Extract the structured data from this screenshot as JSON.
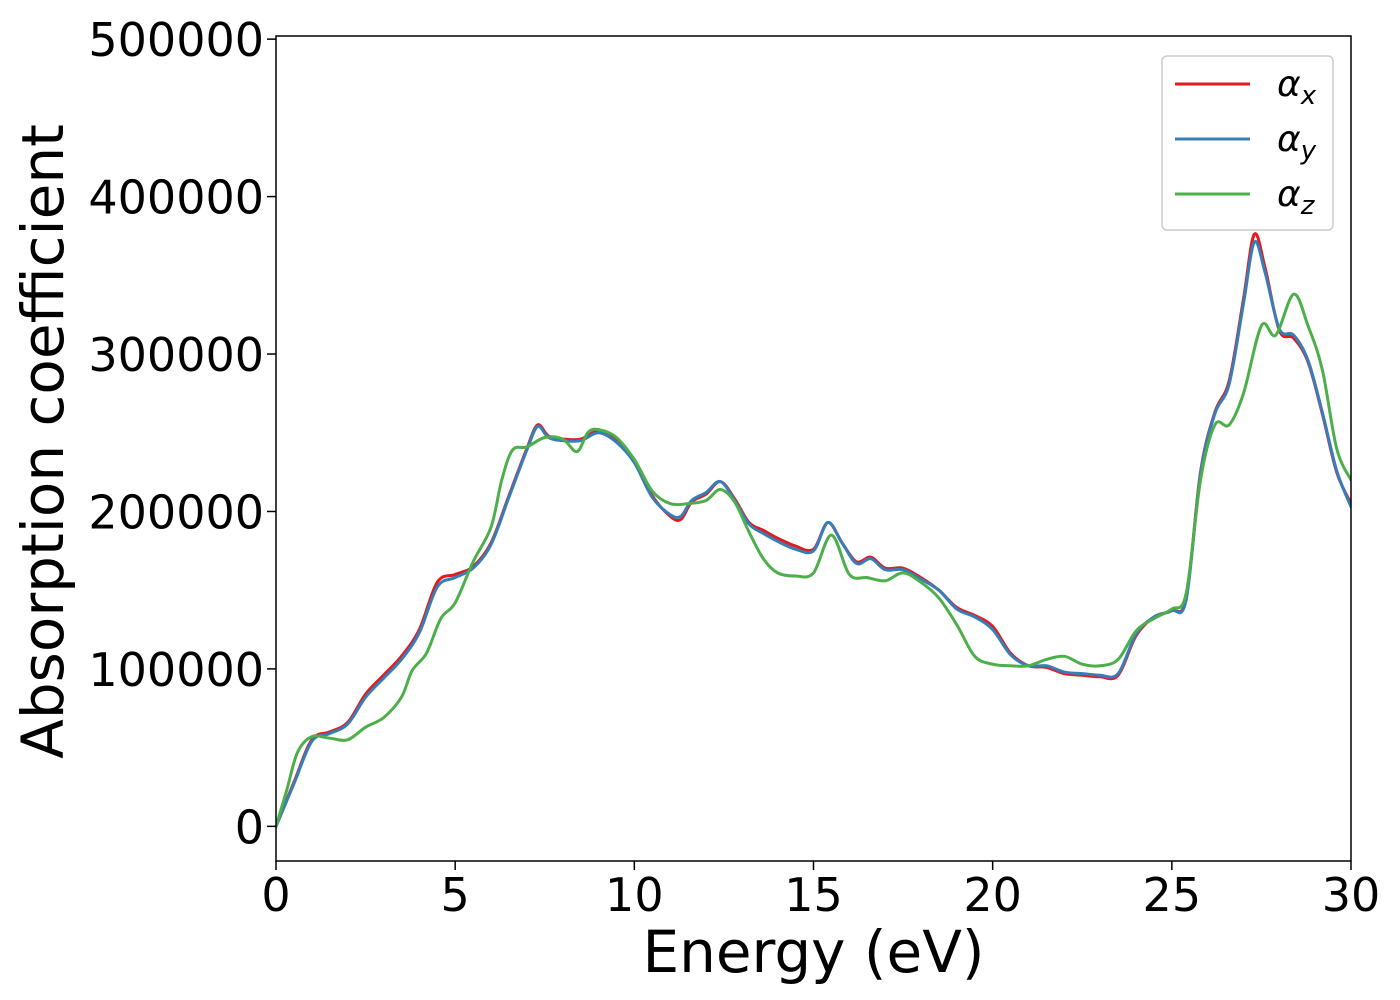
{
  "chart_data": {
    "type": "line",
    "title": "",
    "xlabel": "Energy (eV)",
    "ylabel": "Absorption coefficient",
    "xlim": [
      0,
      30
    ],
    "ylim": [
      -22000,
      502000
    ],
    "xticks": [
      0,
      5,
      10,
      15,
      20,
      25,
      30
    ],
    "xtick_labels": [
      "0",
      "5",
      "10",
      "15",
      "20",
      "25",
      "30"
    ],
    "yticks": [
      0,
      100000,
      200000,
      300000,
      400000,
      500000
    ],
    "ytick_labels": [
      "0",
      "100000",
      "200000",
      "300000",
      "400000",
      "500000"
    ],
    "grid": false,
    "legend_position": "top-right",
    "series": [
      {
        "name": "α_x",
        "legend_main": "α",
        "legend_sub": "x",
        "color": "#e41a1c",
        "points": [
          [
            0,
            0
          ],
          [
            0.5,
            28000
          ],
          [
            1,
            55000
          ],
          [
            1.5,
            60000
          ],
          [
            2,
            66000
          ],
          [
            2.5,
            84000
          ],
          [
            3,
            96000
          ],
          [
            3.5,
            108000
          ],
          [
            4,
            125000
          ],
          [
            4.5,
            155000
          ],
          [
            5,
            160000
          ],
          [
            5.5,
            165000
          ],
          [
            6,
            180000
          ],
          [
            6.5,
            210000
          ],
          [
            7,
            240000
          ],
          [
            7.3,
            255000
          ],
          [
            7.6,
            248000
          ],
          [
            8,
            246000
          ],
          [
            8.5,
            246000
          ],
          [
            9,
            251000
          ],
          [
            9.5,
            245000
          ],
          [
            10,
            232000
          ],
          [
            10.5,
            210000
          ],
          [
            11,
            197000
          ],
          [
            11.3,
            195000
          ],
          [
            11.6,
            206000
          ],
          [
            12,
            211000
          ],
          [
            12.4,
            219000
          ],
          [
            12.8,
            208000
          ],
          [
            13.2,
            193000
          ],
          [
            13.6,
            188000
          ],
          [
            14,
            183000
          ],
          [
            14.5,
            178000
          ],
          [
            15,
            176000
          ],
          [
            15.4,
            193000
          ],
          [
            15.8,
            180000
          ],
          [
            16.2,
            168000
          ],
          [
            16.6,
            171000
          ],
          [
            17,
            164000
          ],
          [
            17.5,
            164000
          ],
          [
            18,
            158000
          ],
          [
            18.5,
            150000
          ],
          [
            19,
            139000
          ],
          [
            19.5,
            134000
          ],
          [
            20,
            127000
          ],
          [
            20.5,
            110000
          ],
          [
            21,
            102000
          ],
          [
            21.5,
            101000
          ],
          [
            22,
            97000
          ],
          [
            22.5,
            96000
          ],
          [
            23,
            95000
          ],
          [
            23.5,
            96000
          ],
          [
            24,
            121000
          ],
          [
            24.5,
            133000
          ],
          [
            25,
            137000
          ],
          [
            25.4,
            145000
          ],
          [
            25.8,
            225000
          ],
          [
            26.2,
            263000
          ],
          [
            26.6,
            283000
          ],
          [
            27,
            335000
          ],
          [
            27.3,
            376000
          ],
          [
            27.6,
            355000
          ],
          [
            28,
            315000
          ],
          [
            28.4,
            310000
          ],
          [
            28.8,
            295000
          ],
          [
            29.2,
            262000
          ],
          [
            29.6,
            225000
          ],
          [
            30,
            205000
          ]
        ]
      },
      {
        "name": "α_y",
        "legend_main": "α",
        "legend_sub": "y",
        "color": "#377eb8",
        "points": [
          [
            0,
            0
          ],
          [
            0.5,
            27000
          ],
          [
            1,
            54000
          ],
          [
            1.5,
            59000
          ],
          [
            2,
            65000
          ],
          [
            2.5,
            82000
          ],
          [
            3,
            94000
          ],
          [
            3.5,
            106000
          ],
          [
            4,
            123000
          ],
          [
            4.5,
            152000
          ],
          [
            5,
            158000
          ],
          [
            5.5,
            164000
          ],
          [
            6,
            179000
          ],
          [
            6.5,
            209000
          ],
          [
            7,
            239000
          ],
          [
            7.3,
            254000
          ],
          [
            7.6,
            247000
          ],
          [
            8,
            245000
          ],
          [
            8.5,
            245000
          ],
          [
            9,
            250000
          ],
          [
            9.5,
            244000
          ],
          [
            10,
            231000
          ],
          [
            10.5,
            209000
          ],
          [
            11,
            198000
          ],
          [
            11.3,
            197000
          ],
          [
            11.6,
            207000
          ],
          [
            12,
            212000
          ],
          [
            12.4,
            219000
          ],
          [
            12.8,
            207000
          ],
          [
            13.2,
            192000
          ],
          [
            13.6,
            186000
          ],
          [
            14,
            181000
          ],
          [
            14.5,
            176000
          ],
          [
            15,
            175000
          ],
          [
            15.4,
            193000
          ],
          [
            15.8,
            180000
          ],
          [
            16.2,
            167000
          ],
          [
            16.6,
            170000
          ],
          [
            17,
            163000
          ],
          [
            17.5,
            163000
          ],
          [
            18,
            157000
          ],
          [
            18.5,
            150000
          ],
          [
            19,
            138000
          ],
          [
            19.5,
            133000
          ],
          [
            20,
            125000
          ],
          [
            20.5,
            109000
          ],
          [
            21,
            102000
          ],
          [
            21.5,
            102000
          ],
          [
            22,
            98000
          ],
          [
            22.5,
            97000
          ],
          [
            23,
            96000
          ],
          [
            23.5,
            97000
          ],
          [
            24,
            122000
          ],
          [
            24.5,
            133000
          ],
          [
            25,
            137000
          ],
          [
            25.4,
            144000
          ],
          [
            25.8,
            224000
          ],
          [
            26.2,
            262000
          ],
          [
            26.6,
            281000
          ],
          [
            27,
            332000
          ],
          [
            27.3,
            371000
          ],
          [
            27.6,
            352000
          ],
          [
            28,
            316000
          ],
          [
            28.4,
            312000
          ],
          [
            28.8,
            296000
          ],
          [
            29.2,
            263000
          ],
          [
            29.6,
            226000
          ],
          [
            30,
            203000
          ]
        ]
      },
      {
        "name": "α_z",
        "legend_main": "α",
        "legend_sub": "z",
        "color": "#4daf4a",
        "points": [
          [
            0,
            0
          ],
          [
            0.3,
            23000
          ],
          [
            0.6,
            47000
          ],
          [
            1,
            57000
          ],
          [
            1.5,
            56000
          ],
          [
            2,
            55000
          ],
          [
            2.5,
            63000
          ],
          [
            3,
            69000
          ],
          [
            3.5,
            82000
          ],
          [
            3.8,
            99000
          ],
          [
            4.2,
            110000
          ],
          [
            4.6,
            132000
          ],
          [
            5,
            142000
          ],
          [
            5.5,
            168000
          ],
          [
            6,
            190000
          ],
          [
            6.3,
            220000
          ],
          [
            6.6,
            239000
          ],
          [
            7,
            241000
          ],
          [
            7.5,
            247000
          ],
          [
            8,
            246000
          ],
          [
            8.4,
            238000
          ],
          [
            8.7,
            250000
          ],
          [
            9,
            252000
          ],
          [
            9.5,
            247000
          ],
          [
            10,
            233000
          ],
          [
            10.5,
            213000
          ],
          [
            11,
            205000
          ],
          [
            11.5,
            205000
          ],
          [
            12,
            207000
          ],
          [
            12.4,
            214000
          ],
          [
            12.8,
            206000
          ],
          [
            13.2,
            187000
          ],
          [
            13.6,
            170000
          ],
          [
            14,
            161000
          ],
          [
            14.5,
            159000
          ],
          [
            15,
            161000
          ],
          [
            15.5,
            185000
          ],
          [
            16,
            160000
          ],
          [
            16.5,
            158000
          ],
          [
            17,
            156000
          ],
          [
            17.5,
            161000
          ],
          [
            18,
            155000
          ],
          [
            18.5,
            145000
          ],
          [
            19,
            128000
          ],
          [
            19.5,
            108000
          ],
          [
            20,
            103000
          ],
          [
            20.5,
            102000
          ],
          [
            21,
            102000
          ],
          [
            21.5,
            106000
          ],
          [
            22,
            108000
          ],
          [
            22.5,
            103000
          ],
          [
            23,
            102000
          ],
          [
            23.5,
            106000
          ],
          [
            24,
            124000
          ],
          [
            24.5,
            132000
          ],
          [
            25,
            138000
          ],
          [
            25.4,
            148000
          ],
          [
            25.8,
            220000
          ],
          [
            26.2,
            255000
          ],
          [
            26.6,
            255000
          ],
          [
            27,
            275000
          ],
          [
            27.5,
            318000
          ],
          [
            27.9,
            312000
          ],
          [
            28.4,
            338000
          ],
          [
            28.8,
            318000
          ],
          [
            29.2,
            290000
          ],
          [
            29.6,
            240000
          ],
          [
            30,
            220000
          ]
        ]
      }
    ]
  }
}
